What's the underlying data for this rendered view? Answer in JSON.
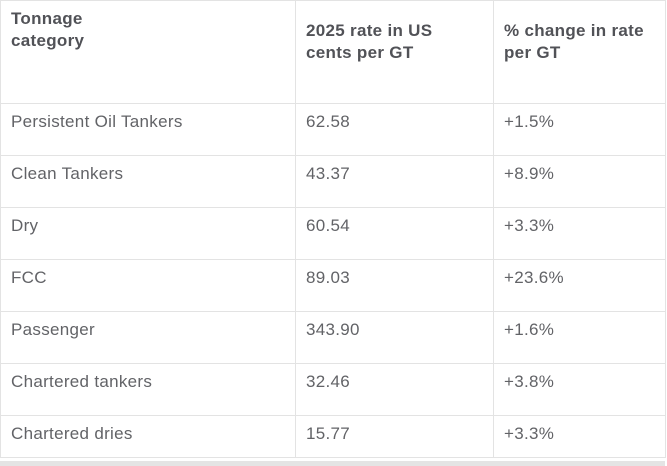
{
  "colors": {
    "header_text": "#515257",
    "body_text": "#626367",
    "border": "#e3e3e3",
    "scrollbar_track": "#e4e4e4",
    "background": "#ffffff"
  },
  "chart_data": {
    "type": "table",
    "columns": [
      "Tonnage category",
      "2025 rate in US cents per GT",
      "% change in rate per GT"
    ],
    "rows": [
      [
        "Persistent Oil Tankers",
        "62.58",
        "+1.5%"
      ],
      [
        "Clean Tankers",
        "43.37",
        "+8.9%"
      ],
      [
        "Dry",
        "60.54",
        "+3.3%"
      ],
      [
        "FCC",
        "89.03",
        "+23.6%"
      ],
      [
        "Passenger",
        "343.90",
        "+1.6%"
      ],
      [
        "Chartered tankers",
        "32.46",
        "+3.8%"
      ],
      [
        "Chartered dries",
        "15.77",
        "+3.3%"
      ]
    ]
  }
}
